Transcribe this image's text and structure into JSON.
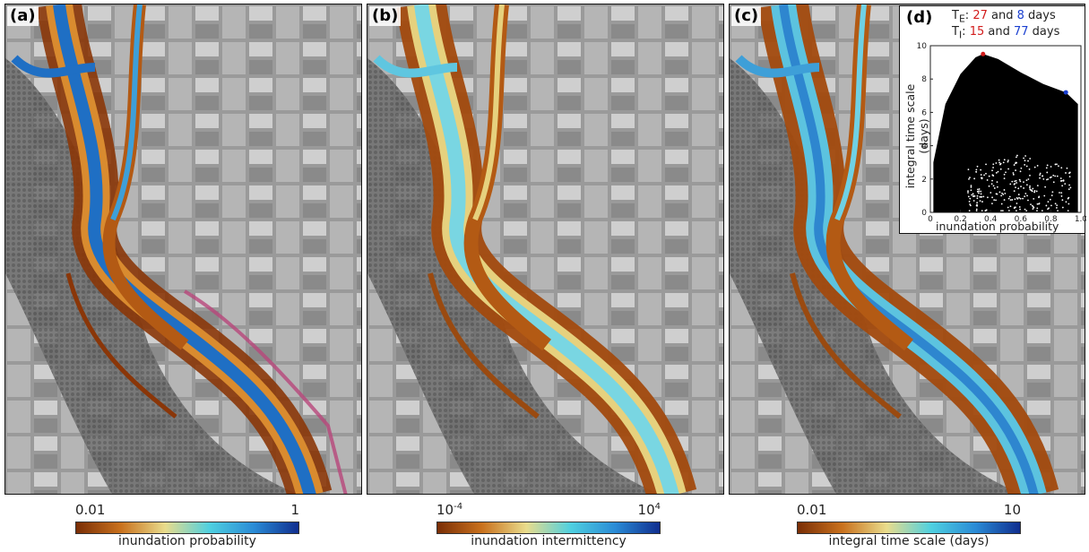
{
  "panels": [
    {
      "label": "(a)",
      "colorbar": {
        "min_label": "0.01",
        "max_label": "1",
        "caption": "inundation probability"
      }
    },
    {
      "label": "(b)",
      "colorbar": {
        "min_base": "10",
        "min_exp": "-4",
        "max_base": "10",
        "max_exp": "4",
        "caption": "inundation intermittency"
      }
    },
    {
      "label": "(c)",
      "colorbar": {
        "min_label": "0.01",
        "max_label": "10",
        "caption": "integral time scale (days)"
      }
    }
  ],
  "inset": {
    "label": "(d)",
    "te_line": {
      "symbol": "T",
      "sub": "E",
      "sep": ":",
      "red_value": "27",
      "and": "and",
      "blue_value": "8",
      "unit": "days"
    },
    "ti_line": {
      "symbol": "T",
      "sub": "I",
      "sep": ":",
      "red_value": "15",
      "and": "and",
      "blue_value": "77",
      "unit": "days"
    },
    "xlabel": "inundation probability",
    "ylabel": "integral time scale (days)",
    "xticks": [
      "0",
      "0.2",
      "0.4",
      "0.6",
      "0.8",
      "1.0"
    ],
    "yticks": [
      "0",
      "2",
      "4",
      "6",
      "8",
      "10"
    ],
    "colors": {
      "red": "#d21c1c",
      "blue": "#1a3fd0",
      "points": "#000000"
    }
  },
  "chart_data": {
    "type": "scatter",
    "xlabel": "inundation probability",
    "ylabel": "integral time scale (days)",
    "xlim": [
      0,
      1
    ],
    "ylim": [
      0,
      10
    ],
    "highlighted_points": [
      {
        "color": "red",
        "x": 0.35,
        "y": 9.5
      },
      {
        "color": "blue",
        "x": 0.9,
        "y": 7.2
      }
    ],
    "upper_envelope": [
      [
        0.02,
        3.0
      ],
      [
        0.1,
        6.5
      ],
      [
        0.2,
        8.3
      ],
      [
        0.3,
        9.3
      ],
      [
        0.35,
        9.5
      ],
      [
        0.45,
        9.2
      ],
      [
        0.6,
        8.4
      ],
      [
        0.75,
        7.7
      ],
      [
        0.9,
        7.2
      ],
      [
        0.98,
        6.5
      ]
    ]
  }
}
